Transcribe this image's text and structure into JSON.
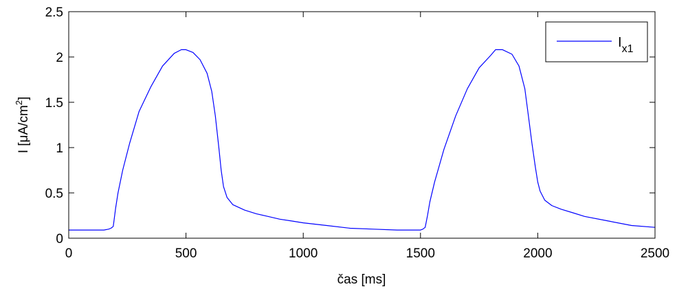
{
  "chart_data": {
    "type": "line",
    "xlabel": "čas [ms]",
    "ylabel": {
      "main": "I [μA/cm",
      "sup": "2",
      "close": "]"
    },
    "xlim": [
      0,
      2500
    ],
    "ylim": [
      0,
      2.5
    ],
    "xticks": [
      0,
      500,
      1000,
      1500,
      2000,
      2500
    ],
    "xtick_labels": [
      "0",
      "500",
      "1000",
      "1500",
      "2000",
      "2500"
    ],
    "yticks": [
      0,
      0.5,
      1,
      1.5,
      2,
      2.5
    ],
    "ytick_labels": [
      "0",
      "0.5",
      "1",
      "1.5",
      "2",
      "2.5"
    ],
    "grid": false,
    "legend_position": "top-right",
    "series": [
      {
        "name": "I",
        "name_sub": "x1",
        "color": "#0000ff",
        "x": [
          0,
          150,
          170,
          180,
          190,
          200,
          210,
          230,
          260,
          300,
          350,
          400,
          450,
          480,
          500,
          530,
          560,
          590,
          610,
          625,
          640,
          650,
          660,
          675,
          700,
          750,
          800,
          850,
          900,
          950,
          1000,
          1100,
          1200,
          1300,
          1400,
          1500,
          1510,
          1520,
          1530,
          1540,
          1560,
          1600,
          1650,
          1700,
          1750,
          1800,
          1820,
          1850,
          1890,
          1920,
          1945,
          1960,
          1975,
          1990,
          2000,
          2010,
          2030,
          2060,
          2100,
          2150,
          2200,
          2300,
          2400,
          2500
        ],
        "y": [
          0.09,
          0.09,
          0.1,
          0.11,
          0.13,
          0.33,
          0.5,
          0.75,
          1.05,
          1.4,
          1.67,
          1.9,
          2.04,
          2.08,
          2.08,
          2.05,
          1.97,
          1.82,
          1.62,
          1.35,
          1.0,
          0.75,
          0.57,
          0.45,
          0.37,
          0.31,
          0.27,
          0.24,
          0.21,
          0.19,
          0.17,
          0.14,
          0.11,
          0.1,
          0.09,
          0.09,
          0.1,
          0.12,
          0.25,
          0.4,
          0.62,
          0.98,
          1.35,
          1.65,
          1.88,
          2.02,
          2.08,
          2.08,
          2.03,
          1.9,
          1.65,
          1.35,
          1.05,
          0.78,
          0.62,
          0.52,
          0.42,
          0.36,
          0.32,
          0.28,
          0.24,
          0.19,
          0.14,
          0.12
        ]
      }
    ]
  }
}
